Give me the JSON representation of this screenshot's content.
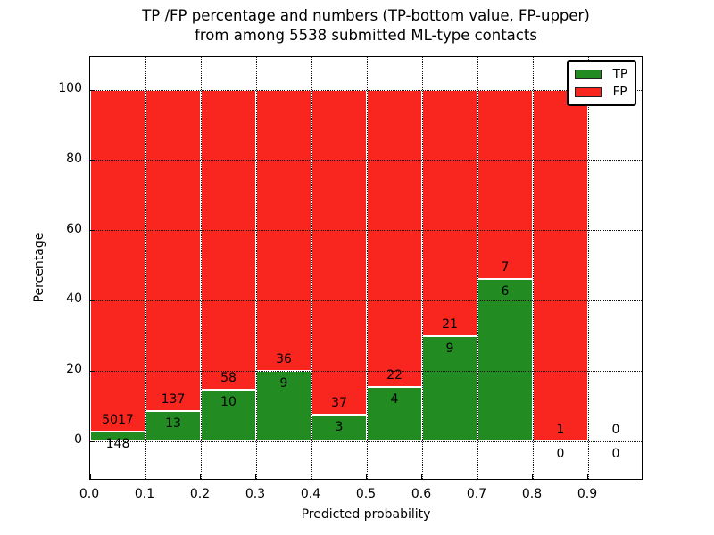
{
  "title_line1": "TP /FP percentage and numbers (TP-bottom value, FP-upper)",
  "title_line2": "from among 5538 submitted ML-type contacts",
  "colors": {
    "tp_green": "#228b22",
    "fp_red": "#f9251f",
    "bar_edge": "#ffffff",
    "grid": "#111111",
    "text": "#000000",
    "background": "#ffffff"
  },
  "chart_data": {
    "type": "bar",
    "stacked": true,
    "title": "TP /FP percentage and numbers (TP-bottom value, FP-upper) from among 5538 submitted ML-type contacts",
    "xlabel": "Predicted probability",
    "ylabel": "Percentage",
    "xlim": [
      0.0,
      1.0
    ],
    "ylim": [
      -11,
      110
    ],
    "grid": "dotted black, on",
    "legend_position": "upper right",
    "legend": [
      {
        "label": "TP",
        "color": "#228b22"
      },
      {
        "label": "FP",
        "color": "#f9251f"
      }
    ],
    "x_tick_labels": [
      "0.0",
      "0.1",
      "0.2",
      "0.3",
      "0.4",
      "0.5",
      "0.6",
      "0.7",
      "0.8",
      "0.9"
    ],
    "y_ticks": [
      0,
      20,
      40,
      60,
      80,
      100
    ],
    "bins": [
      {
        "x_start": 0.0,
        "x_end": 0.1,
        "tp_count": 148,
        "fp_count": 5017,
        "tp_pct": 2.87,
        "fp_pct": 97.13
      },
      {
        "x_start": 0.1,
        "x_end": 0.2,
        "tp_count": 13,
        "fp_count": 137,
        "tp_pct": 8.67,
        "fp_pct": 91.33
      },
      {
        "x_start": 0.2,
        "x_end": 0.3,
        "tp_count": 10,
        "fp_count": 58,
        "tp_pct": 14.71,
        "fp_pct": 85.29
      },
      {
        "x_start": 0.3,
        "x_end": 0.4,
        "tp_count": 9,
        "fp_count": 36,
        "tp_pct": 20.0,
        "fp_pct": 80.0
      },
      {
        "x_start": 0.4,
        "x_end": 0.5,
        "tp_count": 3,
        "fp_count": 37,
        "tp_pct": 7.5,
        "fp_pct": 92.5
      },
      {
        "x_start": 0.5,
        "x_end": 0.6,
        "tp_count": 4,
        "fp_count": 22,
        "tp_pct": 15.38,
        "fp_pct": 84.62
      },
      {
        "x_start": 0.6,
        "x_end": 0.7,
        "tp_count": 9,
        "fp_count": 21,
        "tp_pct": 30.0,
        "fp_pct": 70.0
      },
      {
        "x_start": 0.7,
        "x_end": 0.8,
        "tp_count": 6,
        "fp_count": 7,
        "tp_pct": 46.15,
        "fp_pct": 53.85
      },
      {
        "x_start": 0.8,
        "x_end": 0.9,
        "tp_count": 0,
        "fp_count": 1,
        "tp_pct": 0.0,
        "fp_pct": 100.0
      },
      {
        "x_start": 0.9,
        "x_end": 1.0,
        "tp_count": 0,
        "fp_count": 0,
        "tp_pct": 0.0,
        "fp_pct": 0.0
      }
    ]
  }
}
